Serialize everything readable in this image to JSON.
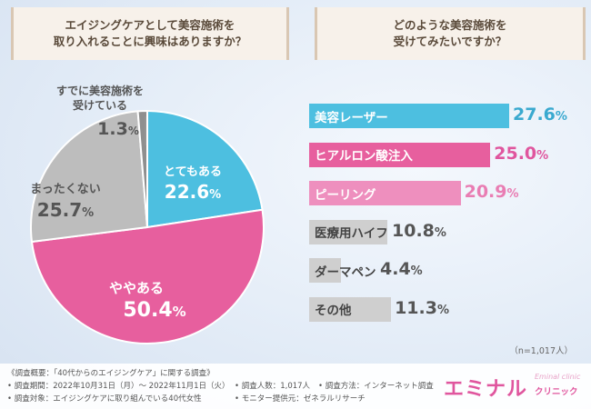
{
  "questions": {
    "q1": "エイジングケアとして美容施術を\n取り入れることに興味はありますか？",
    "q2": "どのような美容施術を\n受けてみたいですか？"
  },
  "chart_data": [
    {
      "type": "pie",
      "slices": [
        {
          "label": "とてもある",
          "value": 22.6,
          "value_text": "22.6",
          "color": "#4dbfe0"
        },
        {
          "label": "ややある",
          "value": 50.4,
          "value_text": "50.4",
          "color": "#e75f9e"
        },
        {
          "label": "まったくない",
          "value": 25.7,
          "value_text": "25.7",
          "color": "#bdbdbd"
        },
        {
          "label": "すでに美容施術を\n受けている",
          "value": 1.3,
          "value_text": "1.3",
          "color": "#8f8f8f"
        }
      ],
      "unit": "%"
    },
    {
      "type": "bar",
      "orientation": "horizontal",
      "categories": [
        "美容レーザー",
        "ヒアルロン酸注入",
        "ピーリング",
        "医療用ハイフ",
        "ダーマペン",
        "その他"
      ],
      "values": [
        27.6,
        25.0,
        20.9,
        10.8,
        4.4,
        11.3
      ],
      "value_texts": [
        "27.6",
        "25.0",
        "20.9",
        "10.8",
        "4.4",
        "11.3"
      ],
      "colors": [
        "#4dbfe0",
        "#e75f9e",
        "#ee8fbe",
        "#cfcfcf",
        "#cfcfcf",
        "#cfcfcf"
      ],
      "text_colors": [
        "#ffffff",
        "#ffffff",
        "#ffffff",
        "#444444",
        "#444444",
        "#444444"
      ],
      "value_colors": [
        "#3aa9cf",
        "#e0569e",
        "#e97db3",
        "#555555",
        "#555555",
        "#555555"
      ],
      "unit": "%",
      "xlim": [
        0,
        27.6
      ]
    }
  ],
  "sample_size": "（n=1,017人）",
  "footer": {
    "line1": "《調査概要：「40代からのエイジングケア」に関する調査》",
    "line2": "• 調査期間：2022年10月31日（月）～ 2022年11月1日（火）",
    "line3": "• 調査対象：エイジングケアに取り組んでいる40代女性",
    "line4": "• 調査人数：1,017人",
    "line5": "• 調査方法：インターネット調査",
    "line6": "• モニター提供元：ゼネラルリサーチ"
  },
  "brand": {
    "main": "エミナル",
    "sub": "クリニック",
    "en": "Eminal clinic"
  }
}
